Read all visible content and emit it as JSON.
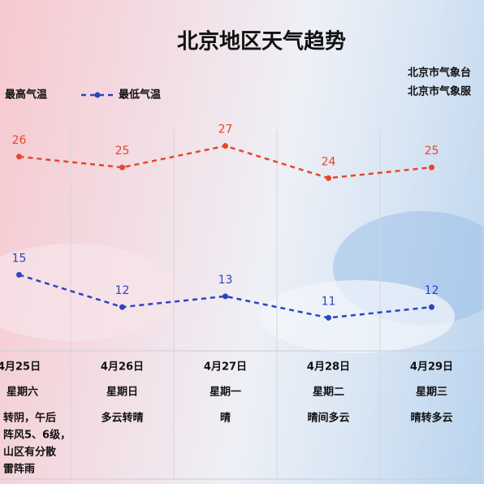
{
  "chart_data": {
    "type": "line",
    "title": "北京地区天气趋势",
    "source": [
      "北京市气象台",
      "北京市气象服"
    ],
    "categories": [
      "4月25日",
      "4月26日",
      "4月27日",
      "4月28日",
      "4月29日"
    ],
    "weekdays": [
      "星期六",
      "星期日",
      "星期一",
      "星期二",
      "星期三"
    ],
    "weather": [
      [
        "转阴，午后",
        "阵风5、6级，",
        "山区有分散",
        "雷阵雨"
      ],
      [
        "多云转晴"
      ],
      [
        "晴"
      ],
      [
        "晴间多云"
      ],
      [
        "晴转多云"
      ]
    ],
    "ylim": [
      8,
      30
    ],
    "series": [
      {
        "name": "最高气温",
        "color": "#e8452a",
        "values": [
          26,
          25,
          27,
          24,
          25
        ]
      },
      {
        "name": "最低气温",
        "color": "#2b45c4",
        "values": [
          15,
          12,
          13,
          11,
          12
        ]
      }
    ]
  }
}
